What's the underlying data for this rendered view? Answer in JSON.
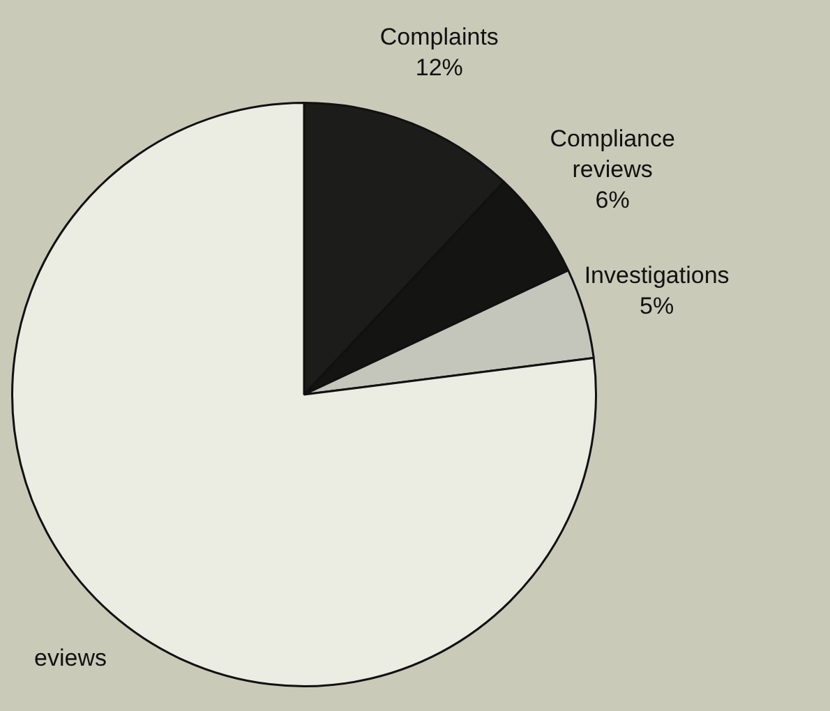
{
  "chart_data": {
    "type": "pie",
    "categories": [
      "Complaints",
      "Compliance reviews",
      "Investigations",
      "eviews"
    ],
    "values": [
      12,
      6,
      5,
      77
    ],
    "colors": [
      "#1c1c1a",
      "#141412",
      "#c4c5bb",
      "#ebece2"
    ],
    "value_labels": [
      "12%",
      "6%",
      "5%",
      null
    ],
    "legend": false
  }
}
